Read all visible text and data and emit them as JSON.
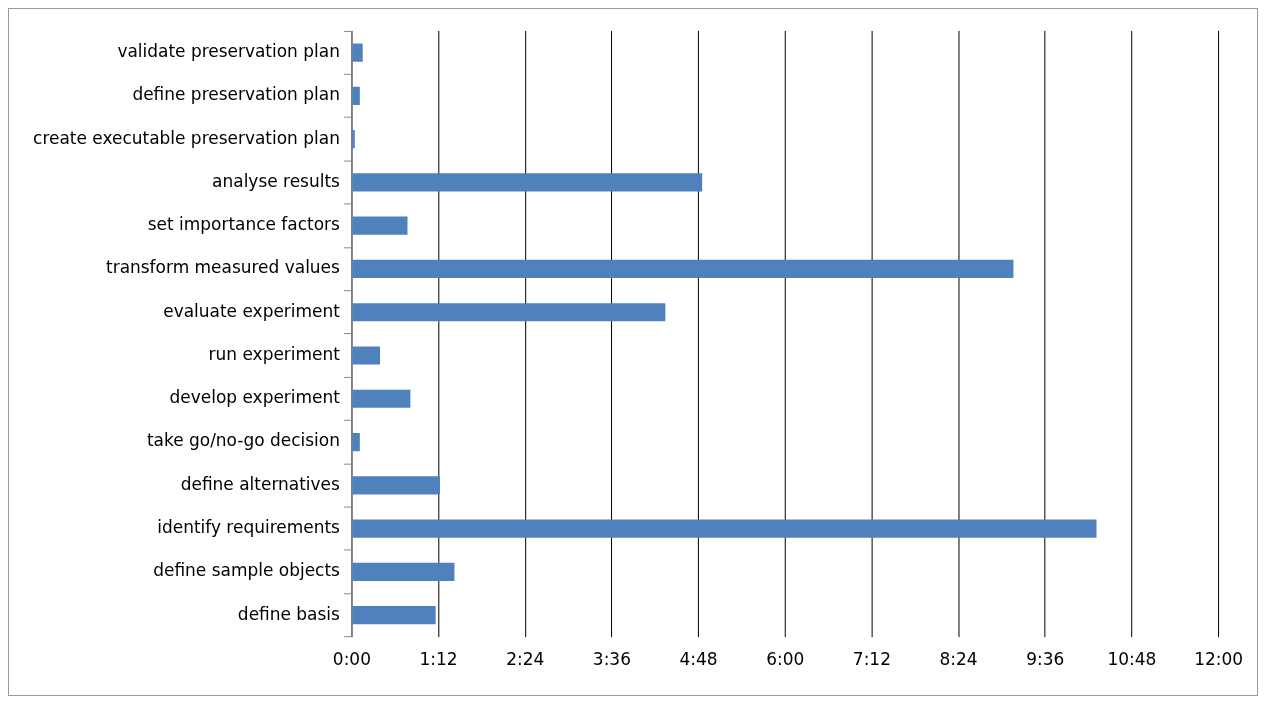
{
  "chart_data": {
    "type": "bar",
    "orientation": "horizontal",
    "categories": [
      "validate preservation plan",
      "define preservation plan",
      "create executable preservation plan",
      "analyse results",
      "set importance factors",
      "transform measured values",
      "evaluate experiment",
      "run experiment",
      "develop experiment",
      "take go/no-go decision",
      "define alternatives",
      "identify requirements",
      "define sample objects",
      "define basis"
    ],
    "values": [
      0.15,
      0.11,
      0.04,
      4.85,
      0.77,
      9.16,
      4.34,
      0.39,
      0.81,
      0.11,
      1.22,
      10.31,
      1.42,
      1.16
    ],
    "color": "#4f81bd",
    "xlim": [
      0,
      12
    ],
    "xticks": [
      {
        "value": 0,
        "label": "0:00"
      },
      {
        "value": 1.2,
        "label": "1:12"
      },
      {
        "value": 2.4,
        "label": "2:24"
      },
      {
        "value": 3.6,
        "label": "3:36"
      },
      {
        "value": 4.8,
        "label": "4:48"
      },
      {
        "value": 6,
        "label": "6:00"
      },
      {
        "value": 7.2,
        "label": "7:12"
      },
      {
        "value": 8.4,
        "label": "8:24"
      },
      {
        "value": 9.6,
        "label": "9:36"
      },
      {
        "value": 10.8,
        "label": "10:48"
      },
      {
        "value": 12,
        "label": "12:00"
      }
    ],
    "grid": "x",
    "legend": false
  }
}
